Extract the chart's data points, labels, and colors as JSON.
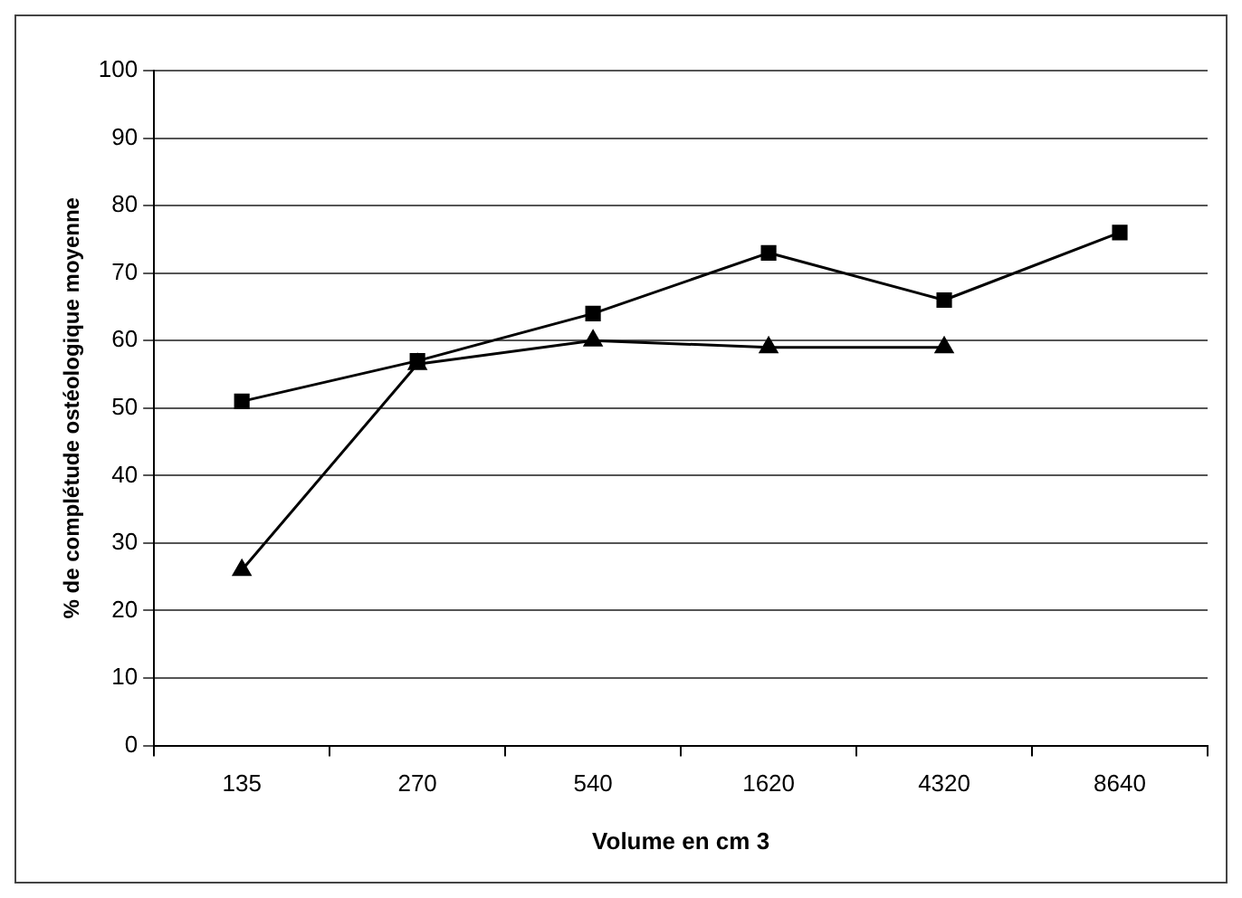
{
  "chart_data": {
    "type": "line",
    "xlabel": "Volume en cm 3",
    "ylabel": "% de complétude ostéologique moyenne",
    "categories": [
      "135",
      "270",
      "540",
      "1620",
      "4320",
      "8640"
    ],
    "series": [
      {
        "color": "#000000",
        "marker": "square",
        "values": [
          51,
          57,
          64,
          73,
          66,
          76
        ]
      },
      {
        "color": "#000000",
        "marker": "triangle",
        "values": [
          26,
          56.5,
          60,
          59,
          59,
          null
        ]
      }
    ],
    "ylim": [
      0,
      100
    ],
    "yticks": [
      0,
      10,
      20,
      30,
      40,
      50,
      60,
      70,
      80,
      90,
      100
    ],
    "grid": "y",
    "legend": false,
    "line_style": "solid"
  }
}
